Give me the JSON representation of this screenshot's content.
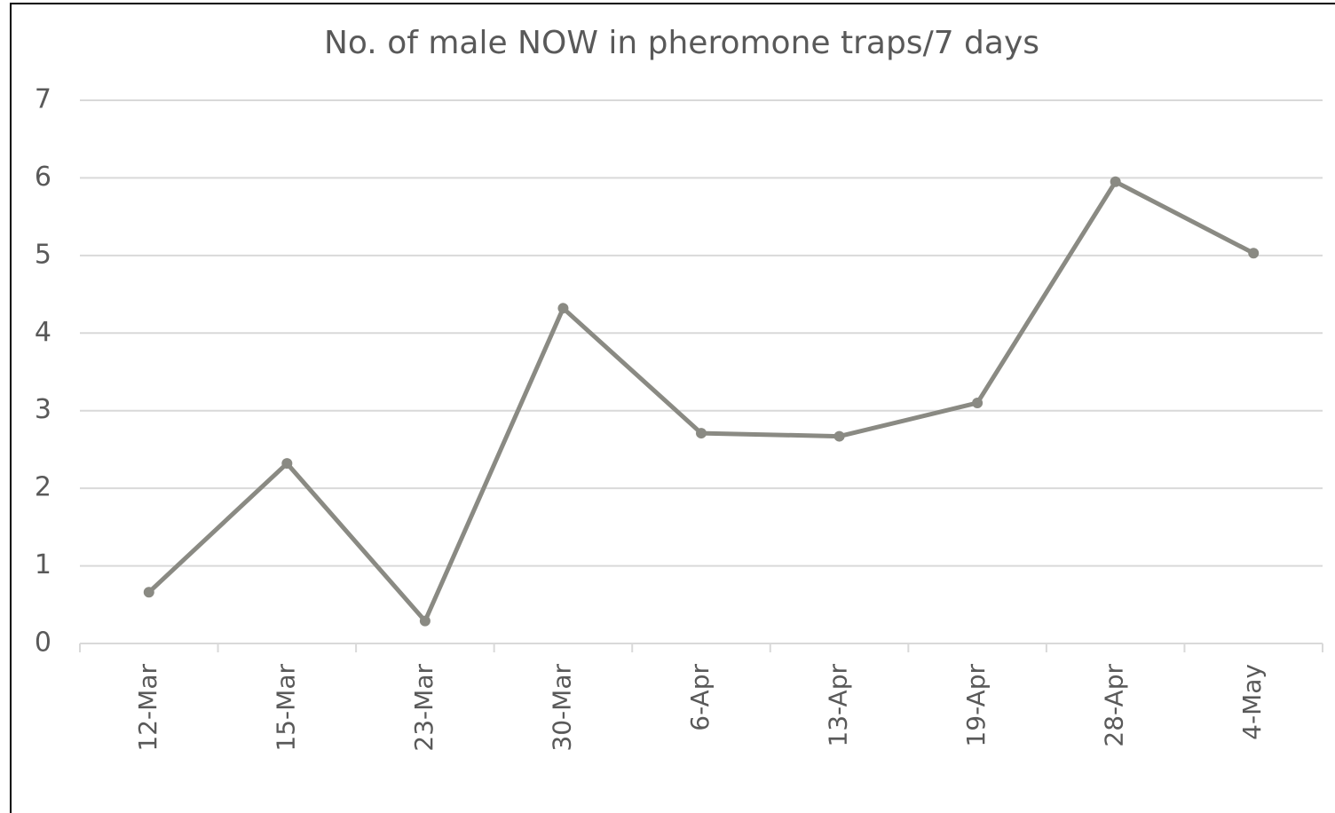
{
  "chart_data": {
    "type": "line",
    "title": "No. of male NOW in pheromone traps/7 days",
    "categories": [
      "12-Mar",
      "15-Mar",
      "23-Mar",
      "30-Mar",
      "6-Apr",
      "13-Apr",
      "19-Apr",
      "28-Apr",
      "4-May"
    ],
    "series": [
      {
        "name": "No. of male NOW in pheromone traps/7 days",
        "color": "#8a8a83",
        "values": [
          0.66,
          2.32,
          0.29,
          4.32,
          2.71,
          2.67,
          3.1,
          5.95,
          5.03
        ]
      }
    ],
    "ylim": [
      0,
      7
    ],
    "yticks": [
      0,
      1,
      2,
      3,
      4,
      5,
      6,
      7
    ],
    "grid": true
  }
}
